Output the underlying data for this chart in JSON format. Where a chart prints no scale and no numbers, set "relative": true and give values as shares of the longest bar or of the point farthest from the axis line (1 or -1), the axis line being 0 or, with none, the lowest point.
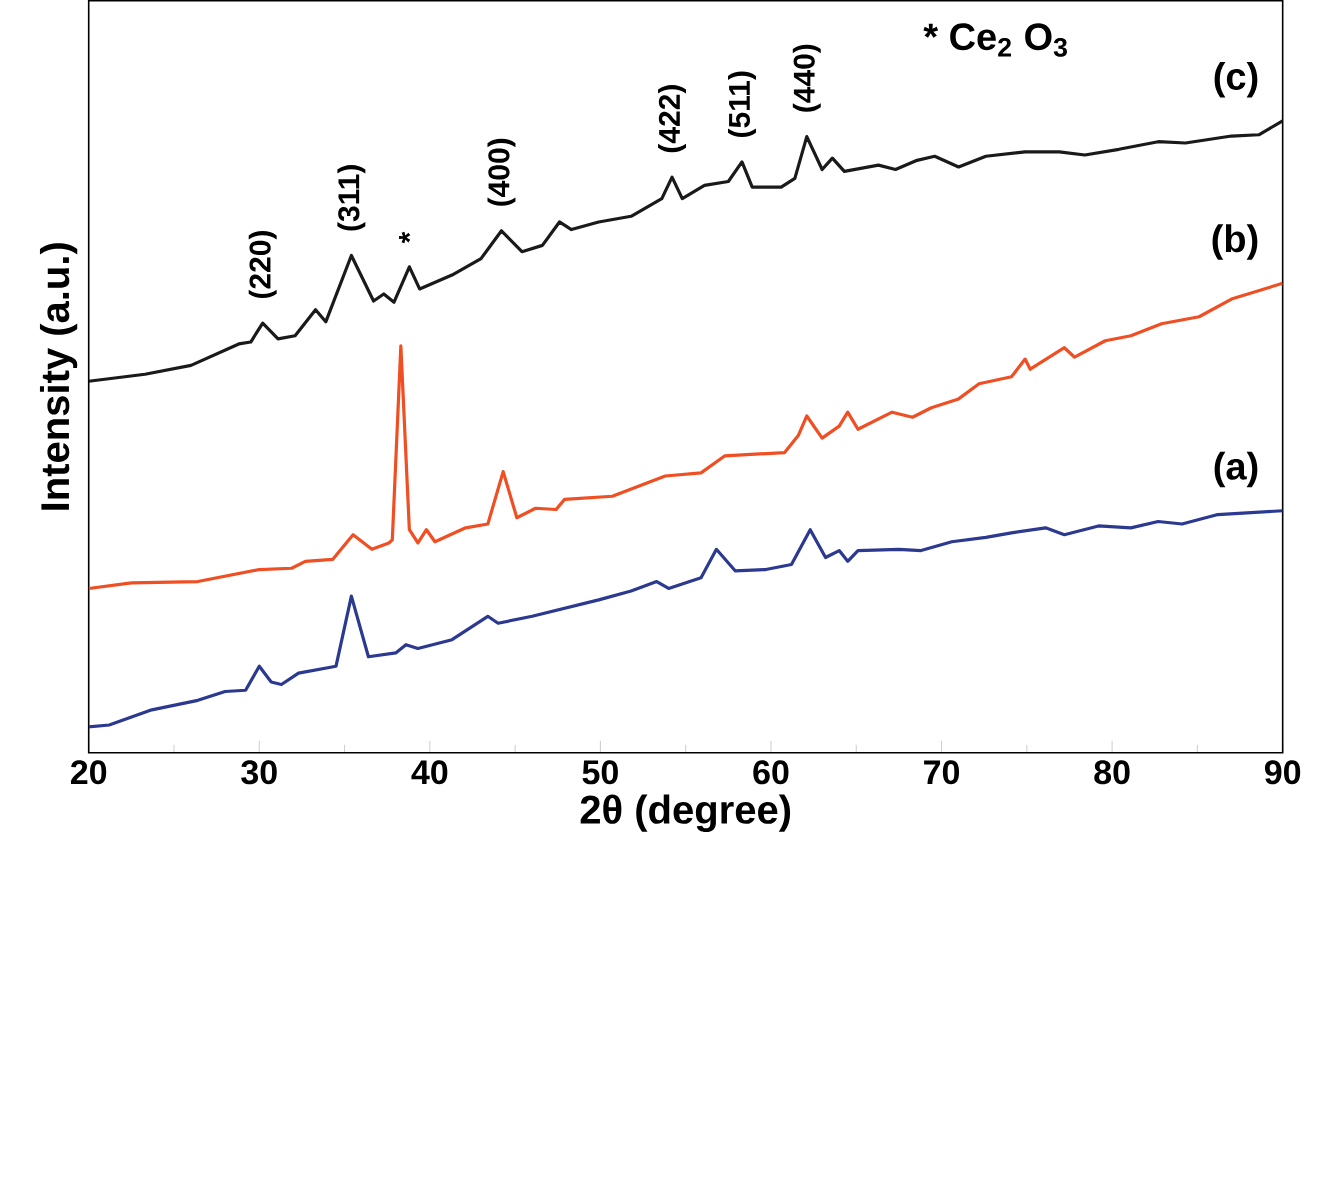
{
  "chart_data": {
    "type": "line",
    "relative": true,
    "xlabel": "2θ (degree)",
    "ylabel": "Intensity (a.u.)",
    "xlim": [
      20,
      90
    ],
    "xticks": [
      20,
      30,
      40,
      50,
      60,
      70,
      80,
      90
    ],
    "series": [
      {
        "name": "(a)",
        "color": "#2b3990",
        "x": [
          20,
          21.2,
          23.7,
          26.4,
          28.0,
          29.2,
          30.0,
          30.7,
          31.3,
          32.3,
          34.5,
          35.4,
          36.4,
          38.0,
          38.6,
          39.3,
          41.3,
          43.4,
          44.0,
          46.0,
          49.9,
          51.8,
          53.3,
          54.0,
          55.9,
          56.8,
          57.9,
          59.7,
          61.2,
          62.3,
          63.2,
          64.0,
          64.5,
          65.1,
          67.5,
          68.8,
          70.6,
          72.6,
          74.1,
          76.1,
          77.2,
          79.2,
          81.1,
          82.7,
          84.1,
          86.2,
          90
        ],
        "values": [
          0.041,
          0.044,
          0.068,
          0.083,
          0.097,
          0.099,
          0.137,
          0.112,
          0.108,
          0.126,
          0.137,
          0.248,
          0.152,
          0.158,
          0.171,
          0.165,
          0.179,
          0.216,
          0.205,
          0.216,
          0.242,
          0.256,
          0.271,
          0.26,
          0.277,
          0.322,
          0.288,
          0.29,
          0.298,
          0.353,
          0.309,
          0.32,
          0.303,
          0.32,
          0.322,
          0.32,
          0.334,
          0.341,
          0.348,
          0.356,
          0.345,
          0.359,
          0.356,
          0.366,
          0.362,
          0.377,
          0.383
        ]
      },
      {
        "name": "(b)",
        "color": "#f04e23",
        "x": [
          20,
          22.5,
          26.4,
          30.0,
          31.9,
          32.7,
          34.3,
          35.5,
          36.6,
          37.6,
          37.8,
          38.3,
          38.8,
          39.3,
          39.8,
          40.3,
          42.1,
          43.4,
          44.3,
          45.1,
          46.2,
          47.4,
          47.9,
          50.7,
          53.8,
          55.9,
          57.3,
          60.8,
          61.6,
          62.1,
          63.0,
          64.0,
          64.5,
          65.1,
          67.1,
          68.3,
          69.4,
          71.0,
          72.2,
          74.1,
          74.9,
          75.2,
          77.2,
          77.8,
          79.6,
          81.1,
          82.9,
          85.1,
          87.0,
          90
        ],
        "values": [
          0.26,
          0.269,
          0.271,
          0.29,
          0.292,
          0.303,
          0.306,
          0.345,
          0.322,
          0.332,
          0.337,
          0.644,
          0.353,
          0.332,
          0.353,
          0.334,
          0.356,
          0.362,
          0.445,
          0.372,
          0.387,
          0.385,
          0.401,
          0.406,
          0.438,
          0.443,
          0.47,
          0.475,
          0.502,
          0.533,
          0.498,
          0.517,
          0.539,
          0.512,
          0.539,
          0.531,
          0.546,
          0.56,
          0.584,
          0.595,
          0.623,
          0.607,
          0.641,
          0.626,
          0.652,
          0.66,
          0.679,
          0.69,
          0.718,
          0.743
        ]
      },
      {
        "name": "(c)",
        "color": "#1a1a1a",
        "x": [
          20,
          23.3,
          26.0,
          28.8,
          29.5,
          30.2,
          31.1,
          32.1,
          33.3,
          33.9,
          35.4,
          36.7,
          37.3,
          37.9,
          38.8,
          39.4,
          41.3,
          43.0,
          44.2,
          45.4,
          46.6,
          47.6,
          48.3,
          49.9,
          51.8,
          53.6,
          54.2,
          54.8,
          56.1,
          57.5,
          58.3,
          58.9,
          60.6,
          61.4,
          62.1,
          63.0,
          63.6,
          64.3,
          66.3,
          67.3,
          68.5,
          69.6,
          71.0,
          72.6,
          74.9,
          76.9,
          78.4,
          80.4,
          82.7,
          84.3,
          87.0,
          88.6,
          90
        ],
        "values": [
          0.588,
          0.599,
          0.613,
          0.647,
          0.65,
          0.68,
          0.655,
          0.66,
          0.701,
          0.682,
          0.787,
          0.715,
          0.726,
          0.713,
          0.769,
          0.734,
          0.756,
          0.782,
          0.826,
          0.793,
          0.803,
          0.84,
          0.828,
          0.84,
          0.849,
          0.877,
          0.911,
          0.877,
          0.898,
          0.904,
          0.935,
          0.895,
          0.895,
          0.909,
          0.975,
          0.923,
          0.941,
          0.92,
          0.93,
          0.923,
          0.937,
          0.944,
          0.927,
          0.944,
          0.951,
          0.951,
          0.946,
          0.955,
          0.967,
          0.965,
          0.976,
          0.978,
          1.0
        ]
      }
    ],
    "annotations": [
      {
        "text": "(220)",
        "x": 30.2,
        "y": 0.68
      },
      {
        "text": "(311)",
        "x": 35.4,
        "y": 0.787
      },
      {
        "text": "*",
        "x": 38.8,
        "y": 0.769
      },
      {
        "text": "(400)",
        "x": 44.2,
        "y": 0.826
      },
      {
        "text": "(422)",
        "x": 54.2,
        "y": 0.911
      },
      {
        "text": "(511)",
        "x": 58.3,
        "y": 0.935
      },
      {
        "text": "(440)",
        "x": 62.1,
        "y": 0.975
      },
      "* Ce$_{2}$ O$_{3}$"
    ]
  }
}
